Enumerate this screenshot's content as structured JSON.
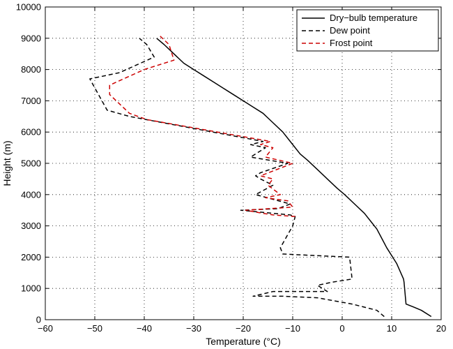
{
  "chart_data": {
    "type": "line",
    "title": "",
    "xlabel": "Temperature (°C)",
    "ylabel": "Height (m)",
    "xlim": [
      -60,
      20
    ],
    "ylim": [
      0,
      10000
    ],
    "xticks": [
      -60,
      -50,
      -40,
      -30,
      -20,
      -10,
      0,
      10,
      20
    ],
    "yticks": [
      0,
      1000,
      2000,
      3000,
      4000,
      5000,
      6000,
      7000,
      8000,
      9000,
      10000
    ],
    "grid": true,
    "legend_position": "top-right",
    "series": [
      {
        "name": "Dry−bulb temperature",
        "color": "#000000",
        "dash": "solid",
        "x": [
          18.0,
          16.0,
          14.5,
          12.9,
          12.5,
          12.4,
          11.0,
          9.0,
          8.0,
          7.0,
          6.0,
          4.5,
          2.5,
          0.5,
          -1.0,
          -3.0,
          -5.0,
          -7.0,
          -8.5,
          -10.0,
          -12.0,
          -14.0,
          -16.0,
          -18.0,
          -20.0,
          -22.0,
          -24.0,
          -26.0,
          -28.0,
          -30.0,
          -32.0,
          -34.0,
          -36.0,
          -37.5
        ],
        "y": [
          100,
          300,
          400,
          500,
          1200,
          1300,
          1800,
          2300,
          2600,
          2900,
          3100,
          3400,
          3700,
          4000,
          4200,
          4500,
          4800,
          5100,
          5300,
          5600,
          6000,
          6300,
          6600,
          6800,
          7000,
          7200,
          7400,
          7600,
          7800,
          8000,
          8200,
          8500,
          8800,
          9000
        ]
      },
      {
        "name": "Dew point",
        "color": "#000000",
        "dash": "dashed",
        "x": [
          8.5,
          7.0,
          2.0,
          -5.0,
          -12.0,
          -18.0,
          -14.0,
          -3.0,
          -5.0,
          -2.0,
          2.0,
          1.5,
          -12.0,
          -12.5,
          -10.0,
          -9.5,
          -10.5,
          -20.5,
          -13.0,
          -10.5,
          -17.5,
          -14.0,
          -16.5,
          -17.5,
          -16.5,
          -11.0,
          -18.5,
          -15.5,
          -18.5,
          -16.0,
          -43.0,
          -47.5,
          -51.0,
          -45.0,
          -38.0,
          -39.5,
          -41.0
        ],
        "y": [
          100,
          300,
          500,
          700,
          750,
          750,
          900,
          900,
          1100,
          1200,
          1300,
          2000,
          2100,
          2300,
          3000,
          3300,
          3350,
          3500,
          3550,
          3700,
          4000,
          4300,
          4500,
          4600,
          4700,
          5000,
          5200,
          5500,
          5600,
          5700,
          6500,
          6700,
          7700,
          7900,
          8400,
          8800,
          9000
        ]
      },
      {
        "name": "Frost point",
        "color": "#cc0000",
        "dash": "dashed",
        "x": [
          -9.5,
          -14.0,
          -16.0,
          -19.5,
          -10.0,
          -11.0,
          -15.5,
          -12.5,
          -15.0,
          -14.0,
          -16.5,
          -10.0,
          -15.5,
          -14.0,
          -16.5,
          -14.5,
          -39.5,
          -43.0,
          -47.0,
          -47.0,
          -40.0,
          -34.0,
          -35.0,
          -37.0
        ],
        "y": [
          3300,
          3350,
          3400,
          3500,
          3600,
          3800,
          3900,
          4000,
          4300,
          4500,
          4600,
          5000,
          5200,
          5500,
          5600,
          5700,
          6400,
          6600,
          7200,
          7500,
          8000,
          8300,
          8800,
          9100
        ]
      }
    ]
  }
}
